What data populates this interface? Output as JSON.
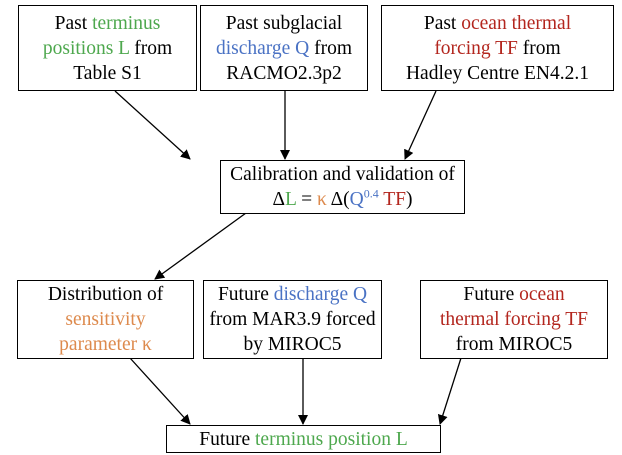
{
  "nodes": [
    {
      "lines": [
        [
          "Past ",
          "terminus"
        ],
        [
          "positions L",
          " from"
        ],
        [
          "Table S1"
        ]
      ]
    },
    {
      "lines": [
        [
          "Past subglacial"
        ],
        [
          "discharge Q",
          " from"
        ],
        [
          "RACMO2.3p2"
        ]
      ]
    },
    {
      "lines": [
        [
          "Past ",
          "ocean thermal"
        ],
        [
          "forcing TF",
          " from"
        ],
        [
          "Hadley Centre EN4.2.1"
        ]
      ]
    },
    {
      "lines": [
        [
          "Calibration and validation of"
        ],
        [
          "Δ",
          "L",
          " = ",
          "κ",
          " Δ(",
          "Q",
          "0.4",
          " TF",
          ")"
        ]
      ]
    },
    {
      "lines": [
        [
          "Distribution of"
        ],
        [
          "sensitivity"
        ],
        [
          "parameter κ"
        ]
      ]
    },
    {
      "lines": [
        [
          "Future ",
          "discharge Q"
        ],
        [
          "from MAR3.9 forced"
        ],
        [
          "by MIROC5"
        ]
      ]
    },
    {
      "lines": [
        [
          "Future ",
          "ocean"
        ],
        [
          "thermal forcing TF"
        ],
        [
          "from MIROC5"
        ]
      ]
    },
    {
      "lines": [
        [
          "Future ",
          "terminus position L"
        ]
      ]
    }
  ]
}
